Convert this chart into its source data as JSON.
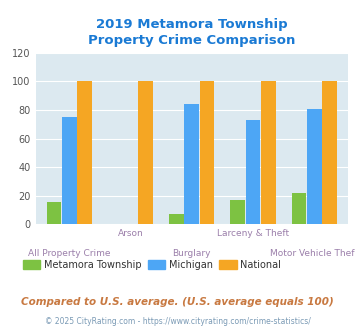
{
  "title": "2019 Metamora Township\nProperty Crime Comparison",
  "title_color": "#1a7ad4",
  "categories": [
    "All Property Crime",
    "Arson",
    "Burglary",
    "Larceny & Theft",
    "Motor Vehicle Theft"
  ],
  "metamora": [
    16,
    0,
    7,
    17,
    22
  ],
  "michigan": [
    75,
    0,
    84,
    73,
    81
  ],
  "national": [
    100,
    100,
    100,
    100,
    100
  ],
  "color_metamora": "#7dc242",
  "color_michigan": "#4da6f5",
  "color_national": "#f5a623",
  "ylim": [
    0,
    120
  ],
  "yticks": [
    0,
    20,
    40,
    60,
    80,
    100,
    120
  ],
  "bg_color": "#dce9f0",
  "legend_labels": [
    "Metamora Township",
    "Michigan",
    "National"
  ],
  "footnote1": "Compared to U.S. average. (U.S. average equals 100)",
  "footnote2": "© 2025 CityRating.com - https://www.cityrating.com/crime-statistics/",
  "footnote1_color": "#c87941",
  "footnote2_color": "#7a9ab5",
  "label_color": "#9b7faa",
  "xlabel_fontsize": 6.5,
  "title_fontsize": 9.5,
  "ylabel_fontsize": 7
}
